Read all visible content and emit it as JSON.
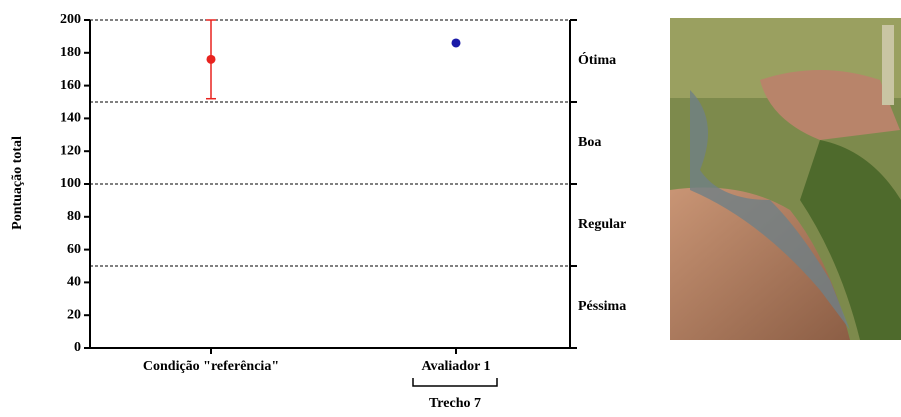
{
  "chart_data": {
    "type": "errorbar_dot",
    "y_label": "Pontuação total",
    "categories": [
      "Condição \"referência\"",
      "Avaliador 1"
    ],
    "group_label": "Trecho 7",
    "series": [
      {
        "color": "#e8231f",
        "values": [
          176,
          null
        ],
        "errors": [
          24,
          null
        ]
      },
      {
        "color": "#1a1aa8",
        "values": [
          null,
          186
        ]
      }
    ],
    "ylim": [
      0,
      200
    ],
    "yticks": [
      0,
      20,
      40,
      60,
      80,
      100,
      120,
      140,
      160,
      180,
      200
    ],
    "bands": [
      0,
      50,
      100,
      150,
      200
    ],
    "zones": [
      "Péssima",
      "Regular",
      "Boa",
      "Ótima"
    ]
  }
}
